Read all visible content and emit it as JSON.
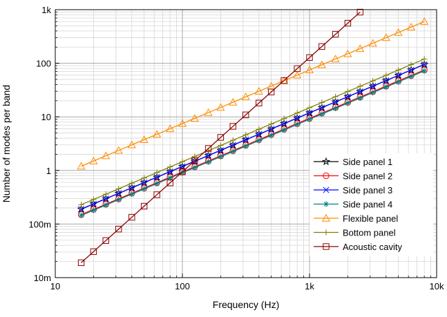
{
  "chart_data": {
    "type": "line",
    "title": "",
    "xlabel": "Frequency (Hz)",
    "ylabel": "Number of modes per band",
    "x_scale": "log",
    "y_scale": "log",
    "xlim": [
      10,
      10000
    ],
    "ylim": [
      0.01,
      1000
    ],
    "grid": true,
    "legend_position": "lower-right",
    "x_ticks": [
      {
        "value": 10,
        "label": "10"
      },
      {
        "value": 100,
        "label": "100"
      },
      {
        "value": 1000,
        "label": "1k"
      },
      {
        "value": 10000,
        "label": "10k"
      }
    ],
    "y_ticks": [
      {
        "value": 0.01,
        "label": "10m"
      },
      {
        "value": 0.1,
        "label": "100m"
      },
      {
        "value": 1,
        "label": "1"
      },
      {
        "value": 10,
        "label": "10"
      },
      {
        "value": 100,
        "label": "100"
      },
      {
        "value": 1000,
        "label": "1k"
      }
    ],
    "x": [
      16,
      20,
      25,
      31.5,
      40,
      50,
      63,
      80,
      100,
      125,
      160,
      200,
      250,
      315,
      400,
      500,
      630,
      800,
      1000,
      1250,
      1600,
      2000,
      2500,
      3150,
      4000,
      5000,
      6300,
      8000
    ],
    "series": [
      {
        "name": "Side panel 1",
        "color": "#000000",
        "marker": "star",
        "start": [
          16,
          0.19
        ],
        "end": [
          8000,
          95
        ]
      },
      {
        "name": "Side panel 2",
        "color": "#ff0000",
        "marker": "circle",
        "start": [
          16,
          0.15
        ],
        "end": [
          8000,
          75
        ]
      },
      {
        "name": "Side panel 3",
        "color": "#0000ff",
        "marker": "x",
        "start": [
          16,
          0.19
        ],
        "end": [
          8000,
          95
        ]
      },
      {
        "name": "Side panel 4",
        "color": "#008080",
        "marker": "asterisk",
        "start": [
          16,
          0.145
        ],
        "end": [
          8000,
          72
        ]
      },
      {
        "name": "Flexible panel",
        "color": "#ff8c00",
        "marker": "triangle",
        "start": [
          16,
          1.2
        ],
        "end": [
          8000,
          600
        ]
      },
      {
        "name": "Bottom panel",
        "color": "#808000",
        "marker": "plus",
        "start": [
          16,
          0.23
        ],
        "end": [
          8000,
          120
        ]
      },
      {
        "name": "Acoustic cavity",
        "color": "#8b0000",
        "marker": "square",
        "start": [
          16,
          0.019
        ],
        "end": [
          2500,
          900
        ]
      }
    ]
  }
}
